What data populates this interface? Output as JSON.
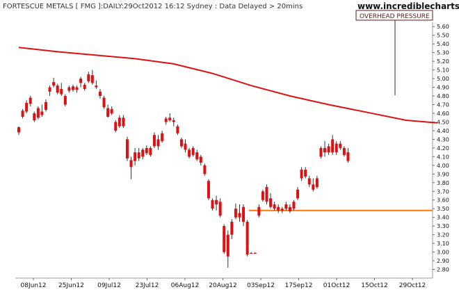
{
  "header": {
    "title": "FORTESCUE METALS [ FMG ]:DAILY:29Oct2012 16:12 Sydney : Data Delayed > 20mins",
    "brand": "www.incrediblecharts.com"
  },
  "annotation": {
    "text": "OVERHEAD PRESSURE"
  },
  "colors": {
    "candle": "#dd1111",
    "ma": "#dd1111",
    "support": "#ff7700",
    "frame": "#5a1a1a"
  },
  "chart_data": {
    "type": "candlestick",
    "title": "FORTESCUE METALS [ FMG ]:DAILY:29Oct2012 16:12 Sydney : Data Delayed > 20mins",
    "ylim": [
      2.7,
      5.65
    ],
    "y_axis_side": "right",
    "y_ticks": [
      "5.60",
      "5.50",
      "5.40",
      "5.30",
      "5.20",
      "5.10",
      "5.00",
      "4.90",
      "4.80",
      "4.70",
      "4.60",
      "4.50",
      "4.40",
      "4.30",
      "4.20",
      "4.10",
      "4.00",
      "3.90",
      "3.80",
      "3.70",
      "3.60",
      "3.50",
      "3.40",
      "3.30",
      "3.20",
      "3.10",
      "3.00",
      "2.90",
      "2.80"
    ],
    "x_labels": [
      "08Jun12",
      "25Jun12",
      "09Jul12",
      "23Jul12",
      "06Aug12",
      "20Aug12",
      "03Sep12",
      "17Sep12",
      "01Oct12",
      "15Oct12",
      "29Oct12"
    ],
    "support_level": 3.48,
    "moving_average": [
      [
        0,
        5.36
      ],
      [
        10,
        5.31
      ],
      [
        20,
        5.27
      ],
      [
        30,
        5.23
      ],
      [
        40,
        5.17
      ],
      [
        50,
        5.06
      ],
      [
        60,
        4.92
      ],
      [
        70,
        4.8
      ],
      [
        80,
        4.7
      ],
      [
        90,
        4.61
      ],
      [
        100,
        4.52
      ],
      [
        108,
        4.49
      ]
    ],
    "candles": [
      {
        "o": 4.38,
        "h": 4.45,
        "l": 4.35,
        "c": 4.44
      },
      {
        "o": 4.56,
        "h": 4.65,
        "l": 4.54,
        "c": 4.63
      },
      {
        "o": 4.62,
        "h": 4.75,
        "l": 4.6,
        "c": 4.72
      },
      {
        "o": 4.71,
        "h": 4.8,
        "l": 4.68,
        "c": 4.78
      },
      {
        "o": 4.6,
        "h": 4.62,
        "l": 4.5,
        "c": 4.52
      },
      {
        "o": 4.55,
        "h": 4.68,
        "l": 4.53,
        "c": 4.66
      },
      {
        "o": 4.58,
        "h": 4.7,
        "l": 4.56,
        "c": 4.62
      },
      {
        "o": 4.64,
        "h": 4.76,
        "l": 4.62,
        "c": 4.73
      },
      {
        "o": 4.85,
        "h": 4.92,
        "l": 4.8,
        "c": 4.9
      },
      {
        "o": 4.96,
        "h": 5.01,
        "l": 4.9,
        "c": 4.92
      },
      {
        "o": 4.84,
        "h": 4.94,
        "l": 4.82,
        "c": 4.92
      },
      {
        "o": 4.88,
        "h": 4.95,
        "l": 4.8,
        "c": 4.82
      },
      {
        "o": 4.8,
        "h": 4.82,
        "l": 4.68,
        "c": 4.7
      },
      {
        "o": 4.86,
        "h": 4.92,
        "l": 4.84,
        "c": 4.9
      },
      {
        "o": 4.87,
        "h": 4.93,
        "l": 4.85,
        "c": 4.91
      },
      {
        "o": 4.87,
        "h": 4.92,
        "l": 4.84,
        "c": 4.9
      },
      {
        "o": 4.95,
        "h": 5.02,
        "l": 4.9,
        "c": 5.0
      },
      {
        "o": 4.88,
        "h": 4.95,
        "l": 4.86,
        "c": 4.93
      },
      {
        "o": 4.97,
        "h": 5.08,
        "l": 4.95,
        "c": 5.05
      },
      {
        "o": 5.04,
        "h": 5.1,
        "l": 4.93,
        "c": 4.95
      },
      {
        "o": 4.92,
        "h": 4.98,
        "l": 4.88,
        "c": 4.9
      },
      {
        "o": 4.85,
        "h": 4.88,
        "l": 4.77,
        "c": 4.8
      },
      {
        "o": 4.78,
        "h": 4.8,
        "l": 4.65,
        "c": 4.67
      },
      {
        "o": 4.66,
        "h": 4.7,
        "l": 4.55,
        "c": 4.56
      },
      {
        "o": 4.6,
        "h": 4.68,
        "l": 4.58,
        "c": 4.65
      },
      {
        "o": 4.5,
        "h": 4.52,
        "l": 4.38,
        "c": 4.4
      },
      {
        "o": 4.45,
        "h": 4.58,
        "l": 4.43,
        "c": 4.55
      },
      {
        "o": 4.55,
        "h": 4.58,
        "l": 4.43,
        "c": 4.45
      },
      {
        "o": 4.3,
        "h": 4.33,
        "l": 4.05,
        "c": 4.08
      },
      {
        "o": 3.98,
        "h": 4.1,
        "l": 3.84,
        "c": 4.06
      },
      {
        "o": 4.05,
        "h": 4.2,
        "l": 4.0,
        "c": 4.15
      },
      {
        "o": 4.15,
        "h": 4.2,
        "l": 4.05,
        "c": 4.08
      },
      {
        "o": 4.1,
        "h": 4.2,
        "l": 4.07,
        "c": 4.18
      },
      {
        "o": 4.2,
        "h": 4.23,
        "l": 4.12,
        "c": 4.14
      },
      {
        "o": 4.12,
        "h": 4.22,
        "l": 4.1,
        "c": 4.2
      },
      {
        "o": 4.22,
        "h": 4.38,
        "l": 4.2,
        "c": 4.35
      },
      {
        "o": 4.3,
        "h": 4.35,
        "l": 4.18,
        "c": 4.22
      },
      {
        "o": 4.28,
        "h": 4.4,
        "l": 4.26,
        "c": 4.37
      },
      {
        "o": 4.5,
        "h": 4.56,
        "l": 4.47,
        "c": 4.54
      },
      {
        "o": 4.55,
        "h": 4.6,
        "l": 4.5,
        "c": 4.52
      },
      {
        "o": 4.5,
        "h": 4.55,
        "l": 4.45,
        "c": 4.52
      },
      {
        "o": 4.45,
        "h": 4.47,
        "l": 4.35,
        "c": 4.37
      },
      {
        "o": 4.3,
        "h": 4.32,
        "l": 4.2,
        "c": 4.22
      },
      {
        "o": 4.25,
        "h": 4.3,
        "l": 4.15,
        "c": 4.18
      },
      {
        "o": 4.18,
        "h": 4.2,
        "l": 4.08,
        "c": 4.1
      },
      {
        "o": 4.12,
        "h": 4.22,
        "l": 4.1,
        "c": 4.2
      },
      {
        "o": 4.15,
        "h": 4.18,
        "l": 4.05,
        "c": 4.07
      },
      {
        "o": 4.1,
        "h": 4.12,
        "l": 4.0,
        "c": 4.03
      },
      {
        "o": 4.0,
        "h": 4.02,
        "l": 3.88,
        "c": 3.9
      },
      {
        "o": 3.82,
        "h": 3.84,
        "l": 3.6,
        "c": 3.62
      },
      {
        "o": 3.5,
        "h": 3.62,
        "l": 3.48,
        "c": 3.6
      },
      {
        "o": 3.55,
        "h": 3.65,
        "l": 3.48,
        "c": 3.6
      },
      {
        "o": 3.58,
        "h": 3.62,
        "l": 3.4,
        "c": 3.42
      },
      {
        "o": 3.3,
        "h": 3.32,
        "l": 2.98,
        "c": 3.0
      },
      {
        "o": 2.95,
        "h": 3.25,
        "l": 2.82,
        "c": 3.2
      },
      {
        "o": 3.2,
        "h": 3.38,
        "l": 3.15,
        "c": 3.35
      },
      {
        "o": 3.5,
        "h": 3.56,
        "l": 3.38,
        "c": 3.4
      },
      {
        "o": 3.45,
        "h": 3.55,
        "l": 3.35,
        "c": 3.4
      },
      {
        "o": 3.52,
        "h": 3.55,
        "l": 3.3,
        "c": 3.35
      },
      {
        "o": 3.35,
        "h": 3.37,
        "l": 2.95,
        "c": 2.97
      },
      {
        "o": 2.99,
        "h": 3.0,
        "l": 2.99,
        "c": 2.99
      },
      {
        "o": 2.99,
        "h": 3.0,
        "l": 2.99,
        "c": 2.99
      },
      {
        "o": 3.42,
        "h": 3.55,
        "l": 3.4,
        "c": 3.52
      },
      {
        "o": 3.6,
        "h": 3.72,
        "l": 3.58,
        "c": 3.7
      },
      {
        "o": 3.75,
        "h": 3.78,
        "l": 3.55,
        "c": 3.58
      },
      {
        "o": 3.62,
        "h": 3.68,
        "l": 3.5,
        "c": 3.52
      },
      {
        "o": 3.5,
        "h": 3.58,
        "l": 3.48,
        "c": 3.55
      },
      {
        "o": 3.52,
        "h": 3.55,
        "l": 3.45,
        "c": 3.48
      },
      {
        "o": 3.48,
        "h": 3.52,
        "l": 3.45,
        "c": 3.5
      },
      {
        "o": 3.5,
        "h": 3.58,
        "l": 3.48,
        "c": 3.55
      },
      {
        "o": 3.52,
        "h": 3.55,
        "l": 3.45,
        "c": 3.47
      },
      {
        "o": 3.5,
        "h": 3.6,
        "l": 3.48,
        "c": 3.58
      },
      {
        "o": 3.62,
        "h": 3.75,
        "l": 3.6,
        "c": 3.72
      },
      {
        "o": 3.85,
        "h": 3.98,
        "l": 3.82,
        "c": 3.95
      },
      {
        "o": 3.95,
        "h": 3.98,
        "l": 3.85,
        "c": 3.87
      },
      {
        "o": 3.85,
        "h": 3.88,
        "l": 3.75,
        "c": 3.78
      },
      {
        "o": 3.78,
        "h": 3.85,
        "l": 3.7,
        "c": 3.72
      },
      {
        "o": 3.75,
        "h": 3.88,
        "l": 3.73,
        "c": 3.85
      },
      {
        "o": 4.1,
        "h": 4.22,
        "l": 4.08,
        "c": 4.2
      },
      {
        "o": 4.2,
        "h": 4.28,
        "l": 4.1,
        "c": 4.15
      },
      {
        "o": 4.15,
        "h": 4.25,
        "l": 4.12,
        "c": 4.22
      },
      {
        "o": 4.3,
        "h": 4.35,
        "l": 4.12,
        "c": 4.15
      },
      {
        "o": 4.15,
        "h": 4.28,
        "l": 4.12,
        "c": 4.25
      },
      {
        "o": 4.25,
        "h": 4.28,
        "l": 4.18,
        "c": 4.2
      },
      {
        "o": 4.2,
        "h": 4.22,
        "l": 4.1,
        "c": 4.12
      },
      {
        "o": 4.15,
        "h": 4.2,
        "l": 4.03,
        "c": 4.05
      }
    ]
  }
}
